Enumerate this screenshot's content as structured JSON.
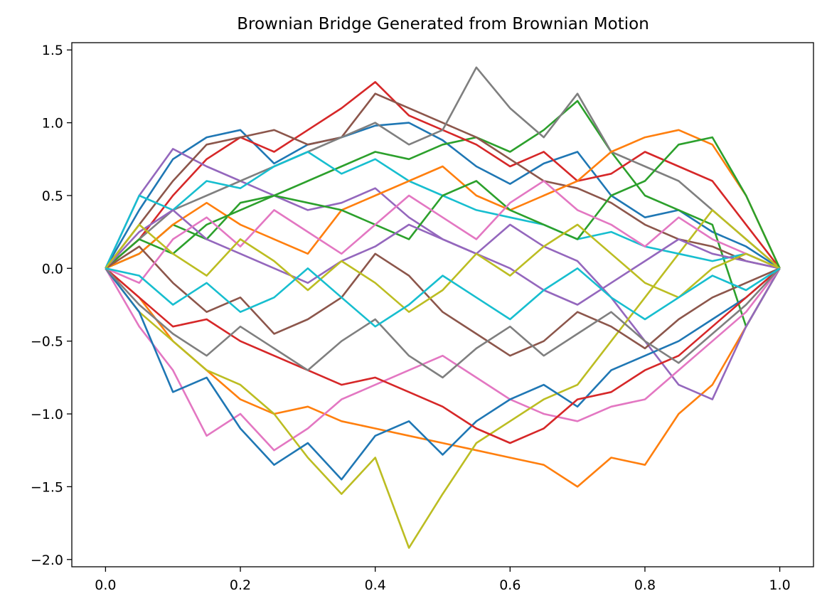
{
  "chart_data": {
    "type": "line",
    "title": "Brownian Bridge Generated from Brownian Motion",
    "xlabel": "",
    "ylabel": "",
    "xlim": [
      -0.05,
      1.05
    ],
    "ylim": [
      -2.05,
      1.55
    ],
    "x_ticks": [
      "0.0",
      "0.2",
      "0.4",
      "0.6",
      "0.8",
      "1.0"
    ],
    "y_ticks": [
      "1.5",
      "1.0",
      "0.5",
      "0.0",
      "−0.5",
      "−1.0",
      "−1.5",
      "−2.0"
    ],
    "x_tick_values": [
      0.0,
      0.2,
      0.4,
      0.6,
      0.8,
      1.0
    ],
    "y_tick_values": [
      1.5,
      1.0,
      0.5,
      0.0,
      -0.5,
      -1.0,
      -1.5,
      -2.0
    ],
    "grid": false,
    "legend": "none",
    "colors": [
      "#1f77b4",
      "#ff7f0e",
      "#2ca02c",
      "#d62728",
      "#9467bd",
      "#8c564b",
      "#e377c2",
      "#7f7f7f",
      "#bcbd22",
      "#17becf"
    ],
    "series": [
      {
        "x": [
          0.0,
          0.05,
          0.1,
          0.15,
          0.2,
          0.25,
          0.3,
          0.35,
          0.4,
          0.45,
          0.5,
          0.55,
          0.6,
          0.65,
          0.7,
          0.75,
          0.8,
          0.85,
          0.9,
          0.95,
          1.0
        ],
        "values": [
          0.0,
          0.4,
          0.75,
          0.9,
          0.95,
          0.72,
          0.85,
          0.9,
          0.98,
          1.0,
          0.88,
          0.7,
          0.58,
          0.72,
          0.8,
          0.5,
          0.35,
          0.4,
          0.25,
          0.15,
          0.0
        ]
      },
      {
        "x": [
          0.0,
          0.05,
          0.1,
          0.15,
          0.2,
          0.25,
          0.3,
          0.35,
          0.4,
          0.45,
          0.5,
          0.55,
          0.6,
          0.65,
          0.7,
          0.75,
          0.8,
          0.85,
          0.9,
          0.95,
          1.0
        ],
        "values": [
          0.0,
          -0.2,
          -0.5,
          -0.7,
          -0.9,
          -1.0,
          -0.95,
          -1.05,
          -1.1,
          -1.15,
          -1.2,
          -1.25,
          -1.3,
          -1.35,
          -1.5,
          -1.3,
          -1.35,
          -1.0,
          -0.8,
          -0.4,
          0.0
        ]
      },
      {
        "x": [
          0.0,
          0.05,
          0.1,
          0.15,
          0.2,
          0.25,
          0.3,
          0.35,
          0.4,
          0.45,
          0.5,
          0.55,
          0.6,
          0.65,
          0.7,
          0.75,
          0.8,
          0.85,
          0.9,
          0.95,
          1.0
        ],
        "values": [
          0.0,
          0.1,
          0.3,
          0.2,
          0.45,
          0.5,
          0.6,
          0.7,
          0.8,
          0.75,
          0.85,
          0.9,
          0.8,
          0.95,
          1.15,
          0.8,
          0.5,
          0.4,
          0.3,
          -0.4,
          0.0
        ]
      },
      {
        "x": [
          0.0,
          0.05,
          0.1,
          0.15,
          0.2,
          0.25,
          0.3,
          0.35,
          0.4,
          0.45,
          0.5,
          0.55,
          0.6,
          0.65,
          0.7,
          0.75,
          0.8,
          0.85,
          0.9,
          0.95,
          1.0
        ],
        "values": [
          0.0,
          0.2,
          0.5,
          0.75,
          0.9,
          0.8,
          0.95,
          1.1,
          1.28,
          1.05,
          0.95,
          0.85,
          0.7,
          0.8,
          0.6,
          0.65,
          0.8,
          0.7,
          0.6,
          0.3,
          0.0
        ]
      },
      {
        "x": [
          0.0,
          0.05,
          0.1,
          0.15,
          0.2,
          0.25,
          0.3,
          0.35,
          0.4,
          0.45,
          0.5,
          0.55,
          0.6,
          0.65,
          0.7,
          0.75,
          0.8,
          0.85,
          0.9,
          0.95,
          1.0
        ],
        "values": [
          0.0,
          0.5,
          0.82,
          0.7,
          0.6,
          0.5,
          0.4,
          0.45,
          0.55,
          0.35,
          0.2,
          0.1,
          0.3,
          0.15,
          0.05,
          -0.2,
          -0.5,
          -0.8,
          -0.9,
          -0.4,
          0.0
        ]
      },
      {
        "x": [
          0.0,
          0.05,
          0.1,
          0.15,
          0.2,
          0.25,
          0.3,
          0.35,
          0.4,
          0.45,
          0.5,
          0.55,
          0.6,
          0.65,
          0.7,
          0.75,
          0.8,
          0.85,
          0.9,
          0.95,
          1.0
        ],
        "values": [
          0.0,
          0.3,
          0.6,
          0.85,
          0.9,
          0.95,
          0.85,
          0.9,
          1.2,
          1.1,
          1.0,
          0.9,
          0.75,
          0.6,
          0.55,
          0.45,
          0.3,
          0.2,
          0.15,
          0.05,
          0.0
        ]
      },
      {
        "x": [
          0.0,
          0.05,
          0.1,
          0.15,
          0.2,
          0.25,
          0.3,
          0.35,
          0.4,
          0.45,
          0.5,
          0.55,
          0.6,
          0.65,
          0.7,
          0.75,
          0.8,
          0.85,
          0.9,
          0.95,
          1.0
        ],
        "values": [
          0.0,
          -0.4,
          -0.7,
          -1.15,
          -1.0,
          -1.25,
          -1.1,
          -0.9,
          -0.8,
          -0.7,
          -0.6,
          -0.75,
          -0.9,
          -1.0,
          -1.05,
          -0.95,
          -0.9,
          -0.7,
          -0.5,
          -0.3,
          0.0
        ]
      },
      {
        "x": [
          0.0,
          0.05,
          0.1,
          0.15,
          0.2,
          0.25,
          0.3,
          0.35,
          0.4,
          0.45,
          0.5,
          0.55,
          0.6,
          0.65,
          0.7,
          0.75,
          0.8,
          0.85,
          0.9,
          0.95,
          1.0
        ],
        "values": [
          0.0,
          0.2,
          0.4,
          0.5,
          0.6,
          0.7,
          0.8,
          0.9,
          1.0,
          0.85,
          0.95,
          1.38,
          1.1,
          0.9,
          1.2,
          0.8,
          0.7,
          0.6,
          0.4,
          0.2,
          0.0
        ]
      },
      {
        "x": [
          0.0,
          0.05,
          0.1,
          0.15,
          0.2,
          0.25,
          0.3,
          0.35,
          0.4,
          0.45,
          0.5,
          0.55,
          0.6,
          0.65,
          0.7,
          0.75,
          0.8,
          0.85,
          0.9,
          0.95,
          1.0
        ],
        "values": [
          0.0,
          -0.3,
          -0.5,
          -0.7,
          -0.8,
          -1.0,
          -1.3,
          -1.55,
          -1.3,
          -1.92,
          -1.55,
          -1.2,
          -1.05,
          -0.9,
          -0.8,
          -0.5,
          -0.2,
          0.1,
          0.4,
          0.2,
          0.0
        ]
      },
      {
        "x": [
          0.0,
          0.05,
          0.1,
          0.15,
          0.2,
          0.25,
          0.3,
          0.35,
          0.4,
          0.45,
          0.5,
          0.55,
          0.6,
          0.65,
          0.7,
          0.75,
          0.8,
          0.85,
          0.9,
          0.95,
          1.0
        ],
        "values": [
          0.0,
          0.5,
          0.4,
          0.6,
          0.55,
          0.7,
          0.8,
          0.65,
          0.75,
          0.6,
          0.5,
          0.4,
          0.35,
          0.3,
          0.2,
          0.25,
          0.15,
          0.1,
          0.05,
          0.1,
          0.0
        ]
      },
      {
        "x": [
          0.0,
          0.05,
          0.1,
          0.15,
          0.2,
          0.25,
          0.3,
          0.35,
          0.4,
          0.45,
          0.5,
          0.55,
          0.6,
          0.65,
          0.7,
          0.75,
          0.8,
          0.85,
          0.9,
          0.95,
          1.0
        ],
        "values": [
          0.0,
          -0.3,
          -0.85,
          -0.75,
          -1.1,
          -1.35,
          -1.2,
          -1.45,
          -1.15,
          -1.05,
          -1.28,
          -1.05,
          -0.9,
          -0.8,
          -0.95,
          -0.7,
          -0.6,
          -0.5,
          -0.35,
          -0.2,
          0.0
        ]
      },
      {
        "x": [
          0.0,
          0.05,
          0.1,
          0.15,
          0.2,
          0.25,
          0.3,
          0.35,
          0.4,
          0.45,
          0.5,
          0.55,
          0.6,
          0.65,
          0.7,
          0.75,
          0.8,
          0.85,
          0.9,
          0.95,
          1.0
        ],
        "values": [
          0.0,
          0.1,
          0.3,
          0.45,
          0.3,
          0.2,
          0.1,
          0.4,
          0.5,
          0.6,
          0.7,
          0.5,
          0.4,
          0.5,
          0.6,
          0.8,
          0.9,
          0.95,
          0.85,
          0.5,
          0.0
        ]
      },
      {
        "x": [
          0.0,
          0.05,
          0.1,
          0.15,
          0.2,
          0.25,
          0.3,
          0.35,
          0.4,
          0.45,
          0.5,
          0.55,
          0.6,
          0.65,
          0.7,
          0.75,
          0.8,
          0.85,
          0.9,
          0.95,
          1.0
        ],
        "values": [
          0.0,
          0.2,
          0.1,
          0.3,
          0.4,
          0.5,
          0.45,
          0.4,
          0.3,
          0.2,
          0.5,
          0.6,
          0.4,
          0.3,
          0.2,
          0.5,
          0.6,
          0.85,
          0.9,
          0.5,
          0.0
        ]
      },
      {
        "x": [
          0.0,
          0.05,
          0.1,
          0.15,
          0.2,
          0.25,
          0.3,
          0.35,
          0.4,
          0.45,
          0.5,
          0.55,
          0.6,
          0.65,
          0.7,
          0.75,
          0.8,
          0.85,
          0.9,
          0.95,
          1.0
        ],
        "values": [
          0.0,
          -0.2,
          -0.4,
          -0.35,
          -0.5,
          -0.6,
          -0.7,
          -0.8,
          -0.75,
          -0.85,
          -0.95,
          -1.1,
          -1.2,
          -1.1,
          -0.9,
          -0.85,
          -0.7,
          -0.6,
          -0.4,
          -0.2,
          0.0
        ]
      },
      {
        "x": [
          0.0,
          0.05,
          0.1,
          0.15,
          0.2,
          0.25,
          0.3,
          0.35,
          0.4,
          0.45,
          0.5,
          0.55,
          0.6,
          0.65,
          0.7,
          0.75,
          0.8,
          0.85,
          0.9,
          0.95,
          1.0
        ],
        "values": [
          0.0,
          0.25,
          0.4,
          0.2,
          0.1,
          0.0,
          -0.1,
          0.05,
          0.15,
          0.3,
          0.2,
          0.1,
          0.0,
          -0.15,
          -0.25,
          -0.1,
          0.05,
          0.2,
          0.1,
          0.05,
          0.0
        ]
      },
      {
        "x": [
          0.0,
          0.05,
          0.1,
          0.15,
          0.2,
          0.25,
          0.3,
          0.35,
          0.4,
          0.45,
          0.5,
          0.55,
          0.6,
          0.65,
          0.7,
          0.75,
          0.8,
          0.85,
          0.9,
          0.95,
          1.0
        ],
        "values": [
          0.0,
          0.15,
          -0.1,
          -0.3,
          -0.2,
          -0.45,
          -0.35,
          -0.2,
          0.1,
          -0.05,
          -0.3,
          -0.45,
          -0.6,
          -0.5,
          -0.3,
          -0.4,
          -0.55,
          -0.35,
          -0.2,
          -0.1,
          0.0
        ]
      },
      {
        "x": [
          0.0,
          0.05,
          0.1,
          0.15,
          0.2,
          0.25,
          0.3,
          0.35,
          0.4,
          0.45,
          0.5,
          0.55,
          0.6,
          0.65,
          0.7,
          0.75,
          0.8,
          0.85,
          0.9,
          0.95,
          1.0
        ],
        "values": [
          0.0,
          -0.1,
          0.2,
          0.35,
          0.15,
          0.4,
          0.25,
          0.1,
          0.3,
          0.5,
          0.35,
          0.2,
          0.45,
          0.6,
          0.4,
          0.3,
          0.15,
          0.35,
          0.2,
          0.1,
          0.0
        ]
      },
      {
        "x": [
          0.0,
          0.05,
          0.1,
          0.15,
          0.2,
          0.25,
          0.3,
          0.35,
          0.4,
          0.45,
          0.5,
          0.55,
          0.6,
          0.65,
          0.7,
          0.75,
          0.8,
          0.85,
          0.9,
          0.95,
          1.0
        ],
        "values": [
          0.0,
          -0.25,
          -0.45,
          -0.6,
          -0.4,
          -0.55,
          -0.7,
          -0.5,
          -0.35,
          -0.6,
          -0.75,
          -0.55,
          -0.4,
          -0.6,
          -0.45,
          -0.3,
          -0.5,
          -0.65,
          -0.45,
          -0.25,
          0.0
        ]
      },
      {
        "x": [
          0.0,
          0.05,
          0.1,
          0.15,
          0.2,
          0.25,
          0.3,
          0.35,
          0.4,
          0.45,
          0.5,
          0.55,
          0.6,
          0.65,
          0.7,
          0.75,
          0.8,
          0.85,
          0.9,
          0.95,
          1.0
        ],
        "values": [
          0.0,
          0.3,
          0.1,
          -0.05,
          0.2,
          0.05,
          -0.15,
          0.05,
          -0.1,
          -0.3,
          -0.15,
          0.1,
          -0.05,
          0.15,
          0.3,
          0.1,
          -0.1,
          -0.2,
          0.0,
          0.1,
          0.0
        ]
      },
      {
        "x": [
          0.0,
          0.05,
          0.1,
          0.15,
          0.2,
          0.25,
          0.3,
          0.35,
          0.4,
          0.45,
          0.5,
          0.55,
          0.6,
          0.65,
          0.7,
          0.75,
          0.8,
          0.85,
          0.9,
          0.95,
          1.0
        ],
        "values": [
          0.0,
          -0.05,
          -0.25,
          -0.1,
          -0.3,
          -0.2,
          0.0,
          -0.2,
          -0.4,
          -0.25,
          -0.05,
          -0.2,
          -0.35,
          -0.15,
          0.0,
          -0.2,
          -0.35,
          -0.2,
          -0.05,
          -0.15,
          0.0
        ]
      }
    ]
  }
}
